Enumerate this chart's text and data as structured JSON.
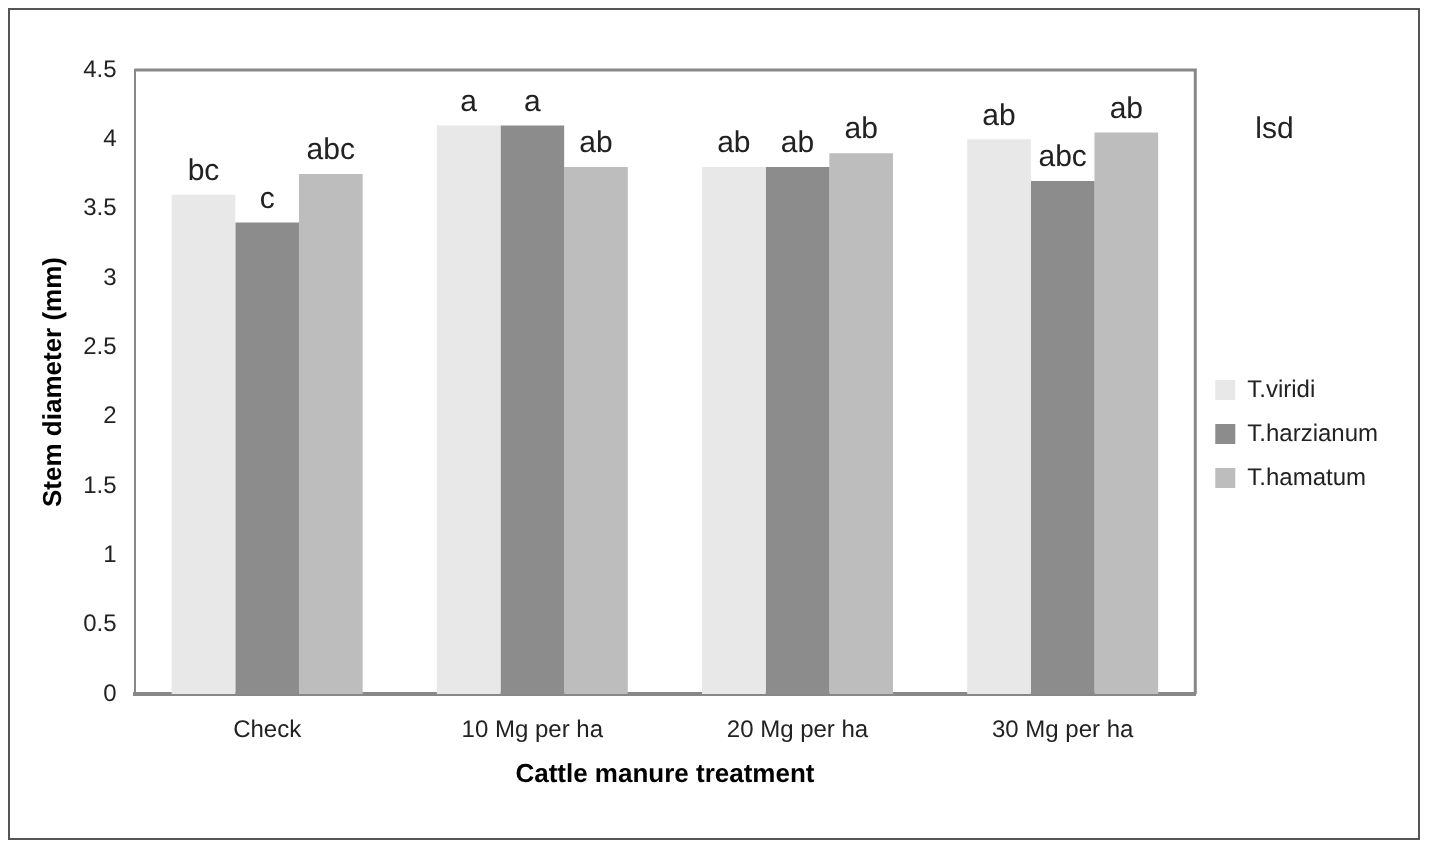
{
  "chart_data": {
    "type": "bar",
    "xlabel": "Cattle manure treatment",
    "ylabel": "Stem diameter (mm)",
    "categories": [
      "Check",
      "10 Mg per ha",
      "20 Mg per ha",
      "30 Mg per ha"
    ],
    "series": [
      {
        "name": "T.viridi",
        "color": "#e8e8e8",
        "values": [
          3.6,
          4.1,
          3.8,
          4.0
        ]
      },
      {
        "name": "T.harzianum",
        "color": "#8c8c8c",
        "values": [
          3.4,
          4.1,
          3.8,
          3.7
        ]
      },
      {
        "name": "T.hamatum",
        "color": "#bdbdbd",
        "values": [
          3.75,
          3.8,
          3.9,
          4.05
        ]
      }
    ],
    "ylim": [
      0,
      4.5
    ],
    "yticks": [
      0,
      0.5,
      1,
      1.5,
      2,
      2.5,
      3,
      3.5,
      4,
      4.5
    ],
    "grid": false,
    "legend": "right",
    "annotations": [
      "bc",
      "c",
      "abc",
      "a",
      "a",
      "ab",
      "ab",
      "ab",
      "ab",
      "ab",
      "abc",
      "ab",
      "lsd"
    ]
  }
}
